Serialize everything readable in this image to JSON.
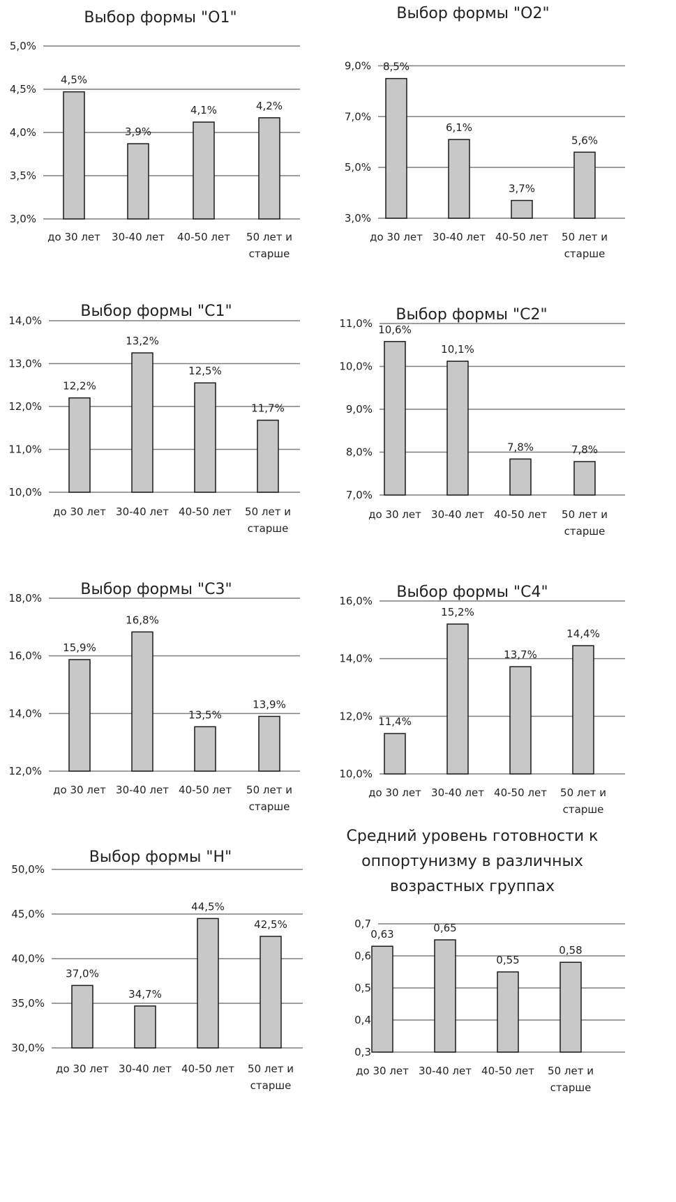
{
  "chart_data": [
    {
      "type": "bar",
      "title": [
        "Выбор формы \"О1\""
      ],
      "categories": [
        [
          "до 30 лет"
        ],
        [
          "30-40 лет"
        ],
        [
          "40-50 лет"
        ],
        [
          "50 лет и",
          "старше"
        ]
      ],
      "values": [
        4.47,
        3.87,
        4.12,
        4.17
      ],
      "data_labels": [
        "4,5%",
        "3,9%",
        "4,1%",
        "4,2%"
      ],
      "ylim": [
        3.0,
        5.0
      ],
      "yticks": [
        3.0,
        3.5,
        4.0,
        4.5,
        5.0
      ],
      "ytick_labels": [
        "3,0%",
        "3,5%",
        "4,0%",
        "4,5%",
        "5,0%"
      ],
      "grid": true
    },
    {
      "type": "bar",
      "title": [
        "Выбор формы \"О2\""
      ],
      "categories": [
        [
          "до 30 лет"
        ],
        [
          "30-40 лет"
        ],
        [
          "40-50 лет"
        ],
        [
          "50 лет и",
          "старше"
        ]
      ],
      "values": [
        8.5,
        6.1,
        3.7,
        5.6
      ],
      "data_labels": [
        "8,5%",
        "6,1%",
        "3,7%",
        "5,6%"
      ],
      "ylim": [
        3.0,
        10.0
      ],
      "yticks": [
        3.0,
        5.0,
        7.0,
        9.0
      ],
      "ytick_labels": [
        "3,0%",
        "5,0%",
        "7,0%",
        "9,0%"
      ],
      "grid": true
    },
    {
      "type": "bar",
      "title": [
        "Выбор формы \"С1\""
      ],
      "categories": [
        [
          "до 30 лет"
        ],
        [
          "30-40 лет"
        ],
        [
          "40-50 лет"
        ],
        [
          "50 лет и",
          "старше"
        ]
      ],
      "values": [
        12.2,
        13.25,
        12.55,
        11.68
      ],
      "data_labels": [
        "12,2%",
        "13,2%",
        "12,5%",
        "11,7%"
      ],
      "ylim": [
        10.0,
        14.0
      ],
      "yticks": [
        10.0,
        11.0,
        12.0,
        13.0,
        14.0
      ],
      "ytick_labels": [
        "10,0%",
        "11,0%",
        "12,0%",
        "13,0%",
        "14,0%"
      ],
      "grid": true
    },
    {
      "type": "bar",
      "title": [
        "Выбор формы \"С2\""
      ],
      "categories": [
        [
          "до 30 лет"
        ],
        [
          "30-40 лет"
        ],
        [
          "40-50 лет"
        ],
        [
          "50 лет и",
          "старше"
        ]
      ],
      "values": [
        10.58,
        10.12,
        7.84,
        7.78
      ],
      "data_labels": [
        "10,6%",
        "10,1%",
        "7,8%",
        "7,8%"
      ],
      "ylim": [
        7.0,
        11.0
      ],
      "yticks": [
        7.0,
        8.0,
        9.0,
        10.0,
        11.0
      ],
      "ytick_labels": [
        "7,0%",
        "8,0%",
        "9,0%",
        "10,0%",
        "11,0%"
      ],
      "grid": true
    },
    {
      "type": "bar",
      "title": [
        "Выбор формы \"С3\""
      ],
      "categories": [
        [
          "до 30 лет"
        ],
        [
          "30-40 лет"
        ],
        [
          "40-50 лет"
        ],
        [
          "50 лет и",
          "старше"
        ]
      ],
      "values": [
        15.87,
        16.83,
        13.54,
        13.9
      ],
      "data_labels": [
        "15,9%",
        "16,8%",
        "13,5%",
        "13,9%"
      ],
      "ylim": [
        12.0,
        18.0
      ],
      "yticks": [
        12.0,
        14.0,
        16.0,
        18.0
      ],
      "ytick_labels": [
        "12,0%",
        "14,0%",
        "16,0%",
        "18,0%"
      ],
      "grid": true
    },
    {
      "type": "bar",
      "title": [
        "Выбор формы \"С4\""
      ],
      "categories": [
        [
          "до 30 лет"
        ],
        [
          "30-40 лет"
        ],
        [
          "40-50 лет"
        ],
        [
          "50 лет и",
          "старше"
        ]
      ],
      "values": [
        11.4,
        15.2,
        13.72,
        14.45
      ],
      "data_labels": [
        "11,4%",
        "15,2%",
        "13,7%",
        "14,4%"
      ],
      "ylim": [
        10.0,
        16.0
      ],
      "yticks": [
        10.0,
        12.0,
        14.0,
        16.0
      ],
      "ytick_labels": [
        "10,0%",
        "12,0%",
        "14,0%",
        "16,0%"
      ],
      "grid": true
    },
    {
      "type": "bar",
      "title": [
        "Выбор формы \"Н\""
      ],
      "categories": [
        [
          "до 30 лет"
        ],
        [
          "30-40 лет"
        ],
        [
          "40-50 лет"
        ],
        [
          "50 лет и",
          "старше"
        ]
      ],
      "values": [
        37.0,
        34.7,
        44.5,
        42.5
      ],
      "data_labels": [
        "37,0%",
        "34,7%",
        "44,5%",
        "42,5%"
      ],
      "ylim": [
        30.0,
        50.0
      ],
      "yticks": [
        30.0,
        35.0,
        40.0,
        45.0,
        50.0
      ],
      "ytick_labels": [
        "30,0%",
        "35,0%",
        "40,0%",
        "45,0%",
        "50,0%"
      ],
      "grid": true
    },
    {
      "type": "bar",
      "title": [
        "Средний уровень готовности к",
        "оппортунизму в различных",
        "возрастных группах"
      ],
      "categories": [
        [
          "до 30 лет"
        ],
        [
          "30-40 лет"
        ],
        [
          "40-50 лет"
        ],
        [
          "50 лет и",
          "старше"
        ]
      ],
      "values": [
        0.63,
        0.65,
        0.55,
        0.58
      ],
      "data_labels": [
        "0,63",
        "0,65",
        "0,55",
        "0,58"
      ],
      "ylim": [
        0.3,
        0.7
      ],
      "yticks": [
        0.3,
        0.4,
        0.5,
        0.6,
        0.7
      ],
      "ytick_labels": [
        "0,3",
        "0,4",
        "0,5",
        "0,6",
        "0,7"
      ],
      "grid": true
    }
  ]
}
